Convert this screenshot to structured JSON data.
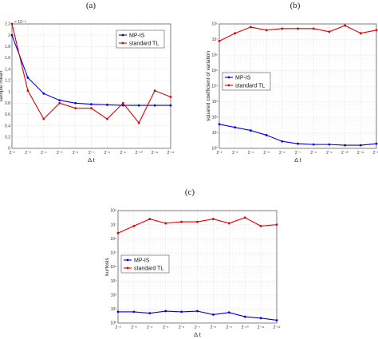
{
  "chart_data": [
    {
      "type": "line",
      "panel_label": "(a)",
      "xlabel": "Δ t",
      "ylabel": "sample mean",
      "y_multiplier": "× 10⁻⁸",
      "x_ticks": [
        "2⁻²",
        "2⁻³",
        "2⁻⁴",
        "2⁻⁵",
        "2⁻⁶",
        "2⁻⁷",
        "2⁻⁸",
        "2⁻⁹",
        "2⁻¹⁰",
        "2⁻¹¹",
        "2⁻¹²"
      ],
      "y_scale": "linear",
      "ylim": [
        0,
        2.2
      ],
      "y_ticks": [
        "0",
        "0.2",
        "0.4",
        "0.6",
        "0.8",
        "1",
        "1.2",
        "1.4",
        "1.6",
        "1.8",
        "2",
        "2.2"
      ],
      "y_tick_values": [
        0,
        0.2,
        0.4,
        0.6,
        0.8,
        1,
        1.2,
        1.4,
        1.6,
        1.8,
        2,
        2.2
      ],
      "grid": true,
      "legend_position": "top-right",
      "series": [
        {
          "name": "MP-IS",
          "color": "#0000dd",
          "values": [
            2.0,
            1.25,
            0.97,
            0.85,
            0.8,
            0.78,
            0.77,
            0.76,
            0.76,
            0.76,
            0.76
          ]
        },
        {
          "name": "standard TL",
          "color": "#dd0000",
          "values": [
            2.2,
            1.02,
            0.52,
            0.8,
            0.71,
            0.71,
            0.52,
            0.8,
            0.45,
            1.02,
            0.91
          ]
        }
      ]
    },
    {
      "type": "line",
      "panel_label": "(b)",
      "xlabel": "Δ t",
      "ylabel": "squared coefficient of variation",
      "x_ticks": [
        "2⁻²",
        "2⁻³",
        "2⁻⁴",
        "2⁻⁵",
        "2⁻⁶",
        "2⁻⁷",
        "2⁻⁸",
        "2⁻⁹",
        "2⁻¹⁰",
        "2⁻¹¹",
        "2⁻¹²"
      ],
      "y_scale": "log",
      "ylim_exp": [
        0,
        8
      ],
      "y_ticks": [
        "10⁰",
        "10¹",
        "10²",
        "10³",
        "10⁴",
        "10⁵",
        "10⁶",
        "10⁷",
        "10⁸"
      ],
      "grid": true,
      "legend_position": "middle-left",
      "series": [
        {
          "name": "MP-IS",
          "color": "#0000dd",
          "values_exp": [
            1.55,
            1.35,
            1.15,
            0.85,
            0.45,
            0.3,
            0.25,
            0.25,
            0.2,
            0.2,
            0.3
          ]
        },
        {
          "name": "standard TL",
          "color": "#dd0000",
          "values_exp": [
            6.9,
            7.4,
            7.8,
            7.6,
            7.7,
            7.7,
            7.7,
            7.5,
            7.9,
            7.4,
            7.6
          ]
        }
      ]
    },
    {
      "type": "line",
      "panel_label": "(c)",
      "xlabel": "Δ t",
      "ylabel": "kurtosis",
      "x_ticks": [
        "2⁻²",
        "2⁻³",
        "2⁻⁴",
        "2⁻⁵",
        "2⁻⁶",
        "2⁻⁷",
        "2⁻⁸",
        "2⁻⁹",
        "2⁻¹⁰",
        "2⁻¹¹",
        "2⁻¹²"
      ],
      "y_scale": "log",
      "ylim_exp": [
        0,
        8
      ],
      "y_ticks": [
        "10⁰",
        "10¹",
        "10²",
        "10³",
        "10⁴",
        "10⁵",
        "10⁶",
        "10⁷",
        "10⁸"
      ],
      "grid": true,
      "legend_position": "middle-left",
      "series": [
        {
          "name": "MP-IS",
          "color": "#0000dd",
          "values_exp": [
            0.8,
            0.8,
            0.7,
            0.85,
            0.8,
            0.85,
            0.6,
            0.75,
            0.45,
            0.35,
            0.2
          ]
        },
        {
          "name": "standard TL",
          "color": "#dd0000",
          "values_exp": [
            6.4,
            6.9,
            7.4,
            7.1,
            7.2,
            7.2,
            7.4,
            7.1,
            7.5,
            6.9,
            7.0
          ]
        }
      ]
    }
  ]
}
